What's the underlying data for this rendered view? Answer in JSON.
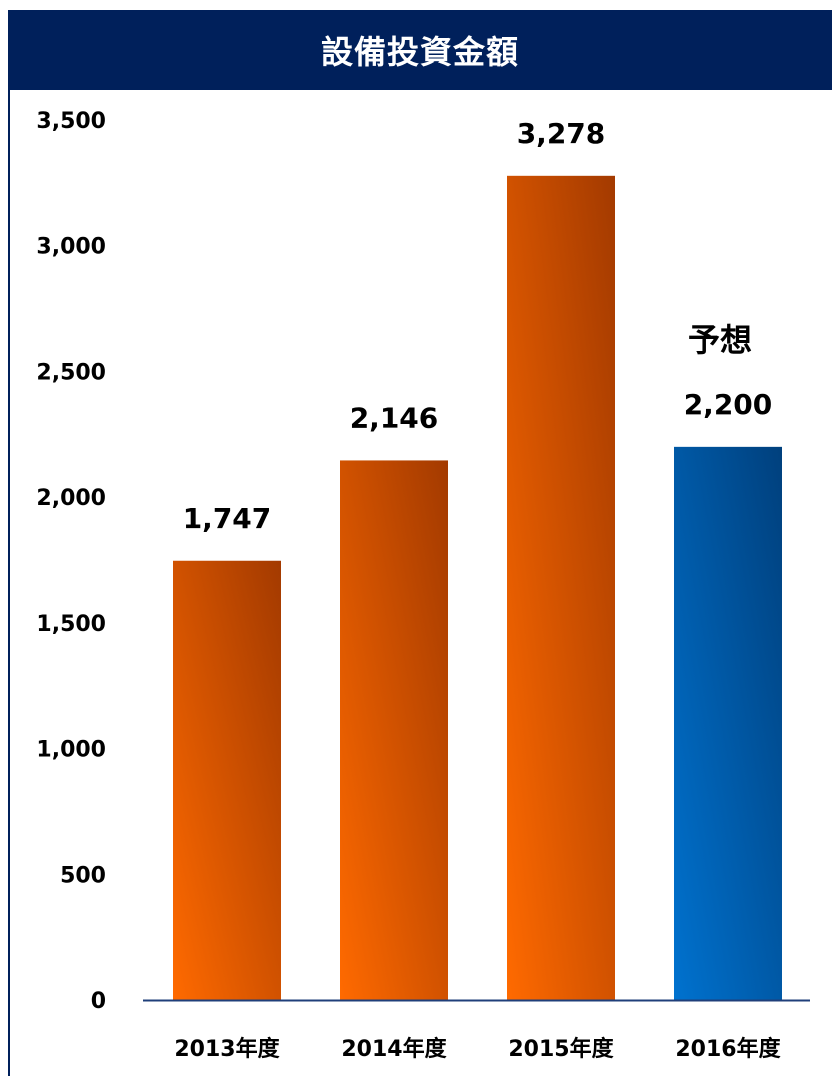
{
  "chart_data": {
    "type": "bar",
    "title": "設備投資金額",
    "categories": [
      "2013年度",
      "2014年度",
      "2015年度",
      "2016年度"
    ],
    "values": [
      1747,
      2146,
      3278,
      2200
    ],
    "value_labels": [
      "1,747",
      "2,146",
      "3,278",
      "2,200"
    ],
    "forecast_note": "予想",
    "forecast_index": 3,
    "ylim": [
      0,
      3500
    ],
    "yticks": [
      0,
      500,
      1000,
      1500,
      2000,
      2500,
      3000,
      3500
    ],
    "ytick_labels": [
      "0",
      "500",
      "1,000",
      "1,500",
      "2,000",
      "2,500",
      "3,000",
      "3,500"
    ],
    "grid": false,
    "colors": {
      "actual_light": "#ff6a00",
      "actual_dark": "#a33a00",
      "forecast_light": "#0072cf",
      "forecast_dark": "#00407d",
      "title_bg": "#00205b",
      "axis": "#1f3f7a"
    }
  }
}
